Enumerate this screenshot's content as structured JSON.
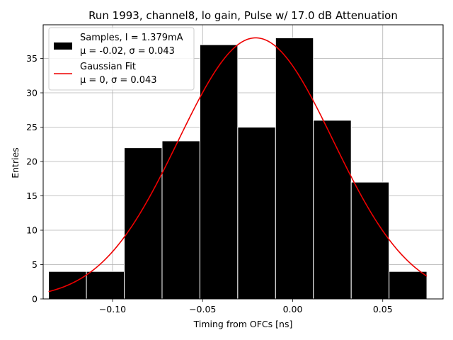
{
  "chart_data": {
    "type": "bar",
    "title": "Run 1993, channel8, lo gain, Pulse w/ 17.0 dB Attenuation",
    "xlabel": "Timing from OFCs [ns]",
    "ylabel": "Entries",
    "xlim": [
      -0.1385,
      0.0835
    ],
    "ylim": [
      0,
      39.9
    ],
    "grid": true,
    "x_ticks": [
      -0.1,
      -0.05,
      0.0,
      0.05
    ],
    "x_tick_labels": [
      "−0.10",
      "−0.05",
      "0.00",
      "0.05"
    ],
    "y_ticks": [
      0,
      5,
      10,
      15,
      20,
      25,
      30,
      35
    ],
    "y_tick_labels": [
      "0",
      "5",
      "10",
      "15",
      "20",
      "25",
      "30",
      "35"
    ],
    "histogram": {
      "name": "Samples, I = 1.379mA",
      "stats_label": "μ = -0.02, σ = 0.043",
      "color": "#000000",
      "edge_color": "#ffffff",
      "bins": [
        {
          "left": -0.1355,
          "right": -0.1145,
          "count": 4
        },
        {
          "left": -0.1145,
          "right": -0.0935,
          "count": 4
        },
        {
          "left": -0.0935,
          "right": -0.0725,
          "count": 22
        },
        {
          "left": -0.0725,
          "right": -0.0515,
          "count": 23
        },
        {
          "left": -0.0515,
          "right": -0.0305,
          "count": 37
        },
        {
          "left": -0.0305,
          "right": -0.0095,
          "count": 25
        },
        {
          "left": -0.0095,
          "right": 0.0115,
          "count": 38
        },
        {
          "left": 0.0115,
          "right": 0.0325,
          "count": 26
        },
        {
          "left": 0.0325,
          "right": 0.0535,
          "count": 17
        },
        {
          "left": 0.0535,
          "right": 0.0745,
          "count": 4
        }
      ]
    },
    "fit": {
      "name": "Gaussian Fit",
      "stats_label": "μ = 0, σ = 0.043",
      "color": "#ee0000",
      "amplitude": 38,
      "mean": -0.0205,
      "sigma": 0.043,
      "x_range": [
        -0.1355,
        0.0745
      ]
    },
    "legend_position": "top-left"
  }
}
